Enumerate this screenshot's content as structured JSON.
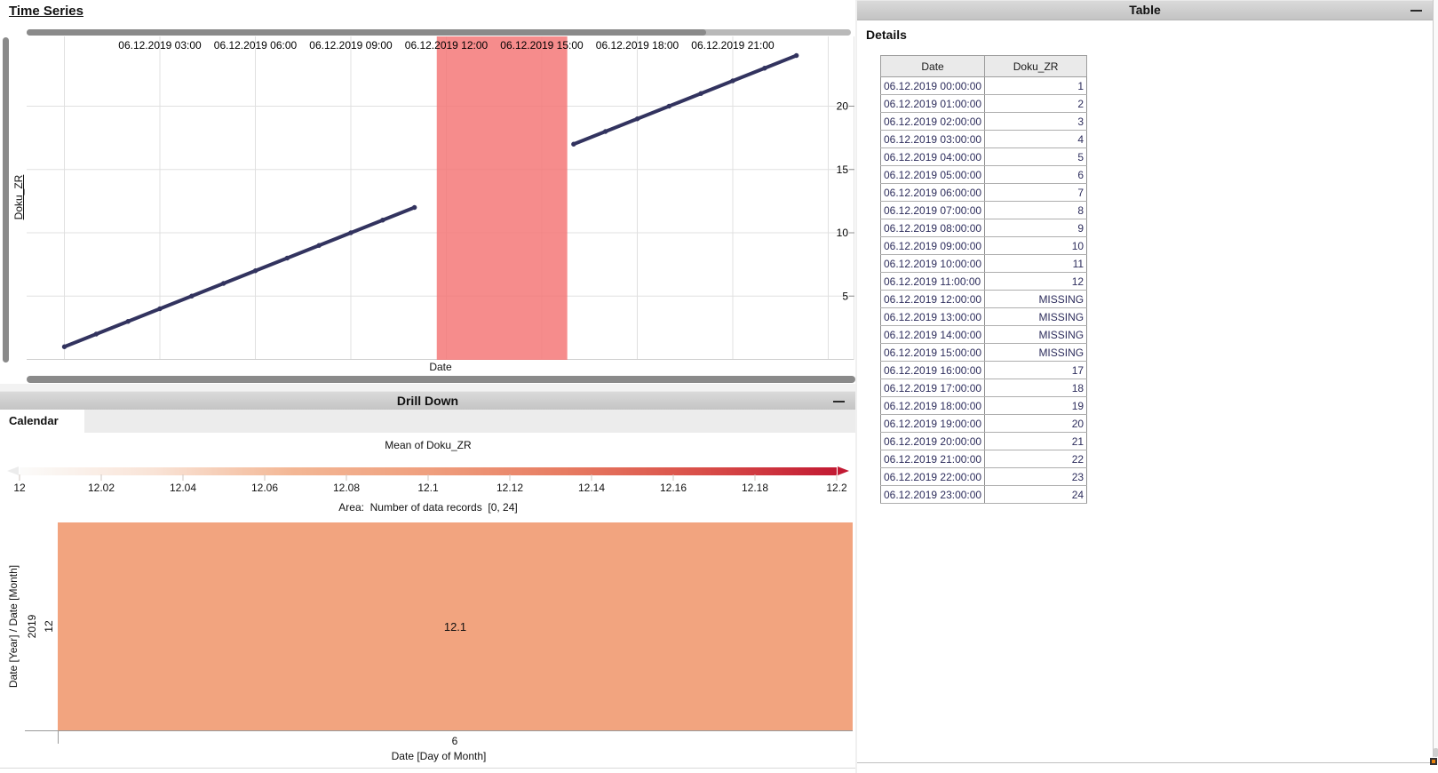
{
  "time_series": {
    "title": "Time Series",
    "y_axis_label": "Doku_ZR",
    "x_axis_label": "Date"
  },
  "drill_down": {
    "title": "Drill Down",
    "minimize_icon": "—",
    "tab_label": "Calendar",
    "legend_title": "Mean of Doku_ZR",
    "legend_ticks": [
      "12",
      "12.02",
      "12.04",
      "12.06",
      "12.08",
      "12.1",
      "12.12",
      "12.14",
      "12.16",
      "12.18",
      "12.2"
    ],
    "legend_colors": [
      "#fbfbfa",
      "#f9e3d6",
      "#f3b795",
      "#ef9f7e",
      "#e77c62",
      "#d94f49",
      "#c21a33"
    ],
    "area_label": "Area:  Number of data records  [0, 24]",
    "heatmap": {
      "y_axis_title": "Date [Year] / Date [Month]",
      "row_group_label": "2019",
      "row_label": "12",
      "cell_label": "12.1",
      "cell_color": "#f2a47f",
      "x_tick_label": "6",
      "x_axis_title": "Date [Day of Month]"
    }
  },
  "table_panel": {
    "title": "Table",
    "minimize_icon": "—",
    "subtitle": "Details",
    "columns": [
      "Date",
      "Doku_ZR"
    ],
    "rows": [
      [
        "06.12.2019 00:00:00",
        "1"
      ],
      [
        "06.12.2019 01:00:00",
        "2"
      ],
      [
        "06.12.2019 02:00:00",
        "3"
      ],
      [
        "06.12.2019 03:00:00",
        "4"
      ],
      [
        "06.12.2019 04:00:00",
        "5"
      ],
      [
        "06.12.2019 05:00:00",
        "6"
      ],
      [
        "06.12.2019 06:00:00",
        "7"
      ],
      [
        "06.12.2019 07:00:00",
        "8"
      ],
      [
        "06.12.2019 08:00:00",
        "9"
      ],
      [
        "06.12.2019 09:00:00",
        "10"
      ],
      [
        "06.12.2019 10:00:00",
        "11"
      ],
      [
        "06.12.2019 11:00:00",
        "12"
      ],
      [
        "06.12.2019 12:00:00",
        "MISSING"
      ],
      [
        "06.12.2019 13:00:00",
        "MISSING"
      ],
      [
        "06.12.2019 14:00:00",
        "MISSING"
      ],
      [
        "06.12.2019 15:00:00",
        "MISSING"
      ],
      [
        "06.12.2019 16:00:00",
        "17"
      ],
      [
        "06.12.2019 17:00:00",
        "18"
      ],
      [
        "06.12.2019 18:00:00",
        "19"
      ],
      [
        "06.12.2019 19:00:00",
        "20"
      ],
      [
        "06.12.2019 20:00:00",
        "21"
      ],
      [
        "06.12.2019 21:00:00",
        "22"
      ],
      [
        "06.12.2019 22:00:00",
        "23"
      ],
      [
        "06.12.2019 23:00:00",
        "24"
      ]
    ]
  },
  "chart_data": [
    {
      "type": "line",
      "title": "Time Series",
      "xlabel": "Date",
      "ylabel": "Doku_ZR",
      "x_tick_labels": [
        {
          "hour": 3,
          "label": "06.12.2019 03:00"
        },
        {
          "hour": 6,
          "label": "06.12.2019 06:00"
        },
        {
          "hour": 9,
          "label": "06.12.2019 09:00"
        },
        {
          "hour": 12,
          "label": "06.12.2019 12:00"
        },
        {
          "hour": 15,
          "label": "06.12.2019 15:00"
        },
        {
          "hour": 18,
          "label": "06.12.2019 18:00"
        },
        {
          "hour": 21,
          "label": "06.12.2019 21:00"
        }
      ],
      "x_gridline_hours": [
        0,
        3,
        6,
        9,
        12,
        15,
        18,
        21,
        24
      ],
      "y_ticks": [
        5,
        10,
        15,
        20
      ],
      "ylim": [
        0,
        25.5
      ],
      "xlim_hours": [
        0,
        24
      ],
      "series": [
        {
          "name": "Doku_ZR",
          "x_hours": [
            0,
            1,
            2,
            3,
            4,
            5,
            6,
            7,
            8,
            9,
            10,
            11,
            12,
            13,
            14,
            15,
            16,
            17,
            18,
            19,
            20,
            21,
            22,
            23
          ],
          "values": [
            1,
            2,
            3,
            4,
            5,
            6,
            7,
            8,
            9,
            10,
            11,
            12,
            null,
            null,
            null,
            null,
            17,
            18,
            19,
            20,
            21,
            22,
            23,
            24
          ]
        }
      ],
      "missing_band_hours": [
        11.7,
        15.8
      ],
      "line_color": "#32335f",
      "band_color": "#f47373",
      "grid": true
    },
    {
      "type": "heatmap",
      "title": "Calendar",
      "legend_title": "Mean of Doku_ZR",
      "legend_range": [
        12,
        12.2
      ],
      "area_note": "Area: Number of data records [0, 24]",
      "xlabel": "Date [Day of Month]",
      "ylabel": "Date [Year] / Date [Month]",
      "rows": [
        {
          "year": "2019",
          "month": "12",
          "day": "6",
          "value": 12.1,
          "color": "#f2a47f"
        }
      ]
    }
  ]
}
